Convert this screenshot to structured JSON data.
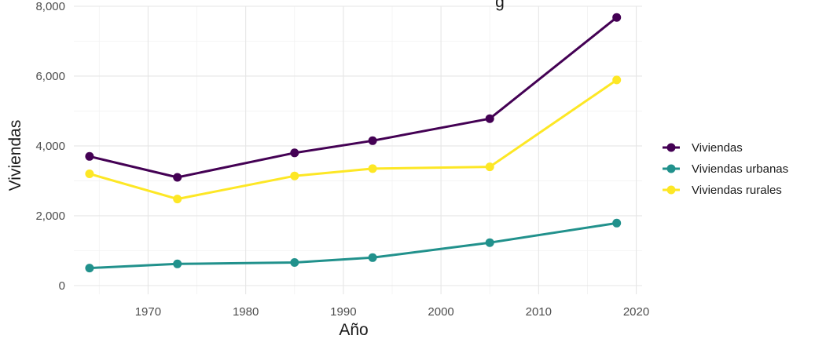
{
  "chart_data": {
    "type": "line",
    "title_fragment": "g",
    "xlabel": "Año",
    "ylabel": "Viviendas",
    "xlim": [
      1962.4,
      2020.6
    ],
    "ylim": [
      -250,
      8000
    ],
    "x_ticks": [
      1970,
      1980,
      1990,
      2000,
      2010,
      2020
    ],
    "x_tick_labels": [
      "1970",
      "1980",
      "1990",
      "2000",
      "2010",
      "2020"
    ],
    "y_ticks": [
      0,
      2000,
      4000,
      6000,
      8000
    ],
    "y_tick_labels": [
      "0",
      "2,000",
      "4,000",
      "6,000",
      "8,000"
    ],
    "grid": true,
    "legend_position": "right",
    "x": [
      1964,
      1973,
      1985,
      1993,
      2005,
      2018
    ],
    "series": [
      {
        "name": "Viviendas",
        "color": "#440154",
        "values": [
          3700,
          3100,
          3800,
          4150,
          4780,
          7680
        ]
      },
      {
        "name": "Viviendas urbanas",
        "color": "#21918c",
        "values": [
          500,
          620,
          660,
          800,
          1230,
          1790
        ]
      },
      {
        "name": "Viviendas rurales",
        "color": "#fde725",
        "values": [
          3200,
          2480,
          3140,
          3350,
          3400,
          5890
        ]
      }
    ]
  }
}
